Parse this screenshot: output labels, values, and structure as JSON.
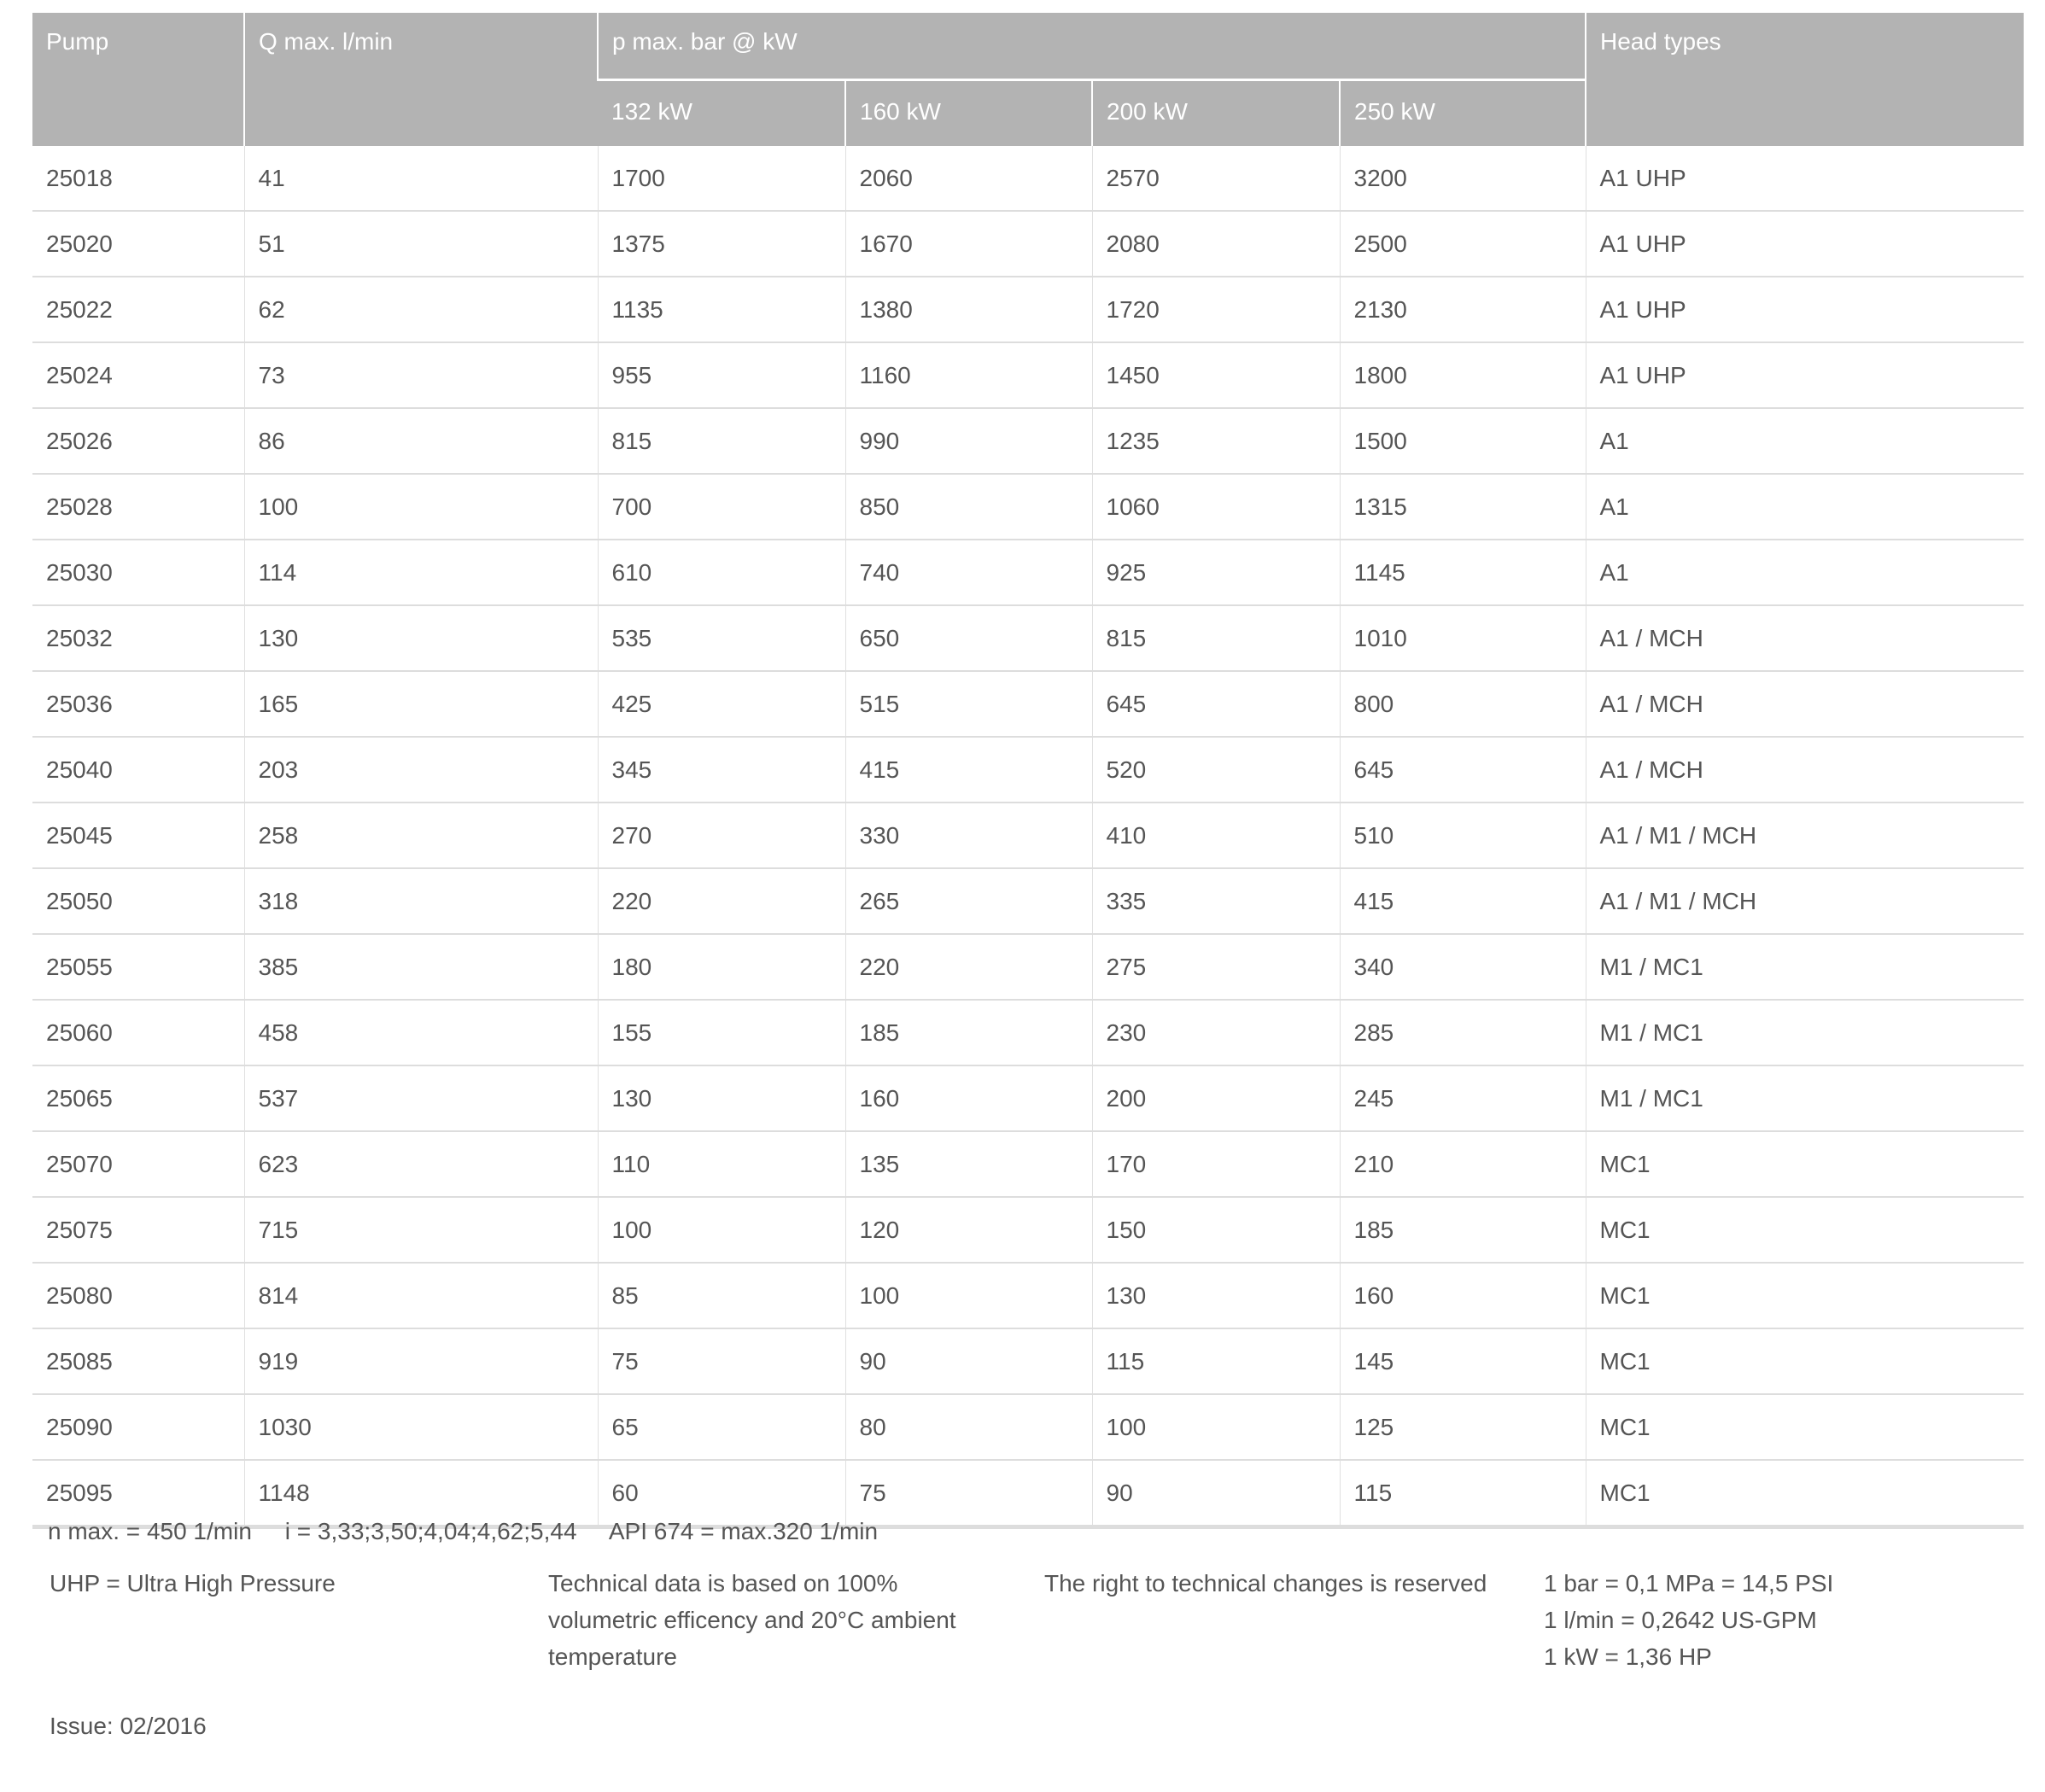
{
  "table": {
    "headers": {
      "pump": "Pump",
      "q_max": "Q max. l/min",
      "p_max": "p max. bar @ kW",
      "head_types": "Head types",
      "kw": [
        "132 kW",
        "160 kW",
        "200 kW",
        "250 kW"
      ]
    },
    "rows": [
      [
        "25018",
        "41",
        "1700",
        "2060",
        "2570",
        "3200",
        "A1 UHP"
      ],
      [
        "25020",
        "51",
        "1375",
        "1670",
        "2080",
        "2500",
        "A1 UHP"
      ],
      [
        "25022",
        "62",
        "1135",
        "1380",
        "1720",
        "2130",
        "A1 UHP"
      ],
      [
        "25024",
        "73",
        "955",
        "1160",
        "1450",
        "1800",
        "A1 UHP"
      ],
      [
        "25026",
        "86",
        "815",
        "990",
        "1235",
        "1500",
        "A1"
      ],
      [
        "25028",
        "100",
        "700",
        "850",
        "1060",
        "1315",
        "A1"
      ],
      [
        "25030",
        "114",
        "610",
        "740",
        "925",
        "1145",
        "A1"
      ],
      [
        "25032",
        "130",
        "535",
        "650",
        "815",
        "1010",
        "A1 / MCH"
      ],
      [
        "25036",
        "165",
        "425",
        "515",
        "645",
        "800",
        "A1 / MCH"
      ],
      [
        "25040",
        "203",
        "345",
        "415",
        "520",
        "645",
        "A1 / MCH"
      ],
      [
        "25045",
        "258",
        "270",
        "330",
        "410",
        "510",
        "A1 / M1 / MCH"
      ],
      [
        "25050",
        "318",
        "220",
        "265",
        "335",
        "415",
        "A1 / M1 / MCH"
      ],
      [
        "25055",
        "385",
        "180",
        "220",
        "275",
        "340",
        "M1 / MC1"
      ],
      [
        "25060",
        "458",
        "155",
        "185",
        "230",
        "285",
        "M1 / MC1"
      ],
      [
        "25065",
        "537",
        "130",
        "160",
        "200",
        "245",
        "M1 / MC1"
      ],
      [
        "25070",
        "623",
        "110",
        "135",
        "170",
        "210",
        "MC1"
      ],
      [
        "25075",
        "715",
        "100",
        "120",
        "150",
        "185",
        "MC1"
      ],
      [
        "25080",
        "814",
        "85",
        "100",
        "130",
        "160",
        "MC1"
      ],
      [
        "25085",
        "919",
        "75",
        "90",
        "115",
        "145",
        "MC1"
      ],
      [
        "25090",
        "1030",
        "65",
        "80",
        "100",
        "125",
        "MC1"
      ],
      [
        "25095",
        "1148",
        "60",
        "75",
        "90",
        "115",
        "MC1"
      ]
    ]
  },
  "footer": {
    "specs": "n max. = 450 1/min     i = 3,33;3,50;4,04;4,62;5,44     API 674 = max.320 1/min",
    "uhp": "UHP = Ultra High Pressure",
    "technical": [
      "Technical data is based on 100%",
      "volumetric efficency and 20°C ambient",
      "temperature"
    ],
    "rights": "The right to technical changes is reserved",
    "conversions": [
      "1 bar = 0,1 MPa = 14,5 PSI",
      "1 l/min = 0,2642 US-GPM",
      "1 kW = 1,36 HP"
    ],
    "issue": "Issue: 02/2016"
  }
}
